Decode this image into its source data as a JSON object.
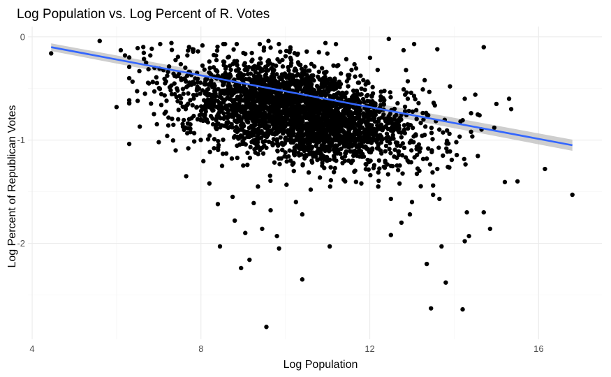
{
  "chart_data": {
    "type": "scatter",
    "title": "Log Population vs. Log Percent of R. Votes",
    "xlabel": "Log Population",
    "ylabel": "Log Percent of Republican Votes",
    "xlim": [
      3.9,
      17.5
    ],
    "ylim": [
      -2.93,
      0.1
    ],
    "xticks": [
      4,
      8,
      12,
      16
    ],
    "xtick_labels": [
      "4",
      "8",
      "12",
      "16"
    ],
    "yticks": [
      0,
      -1,
      -2
    ],
    "ytick_labels": [
      "0",
      "-1",
      "-2"
    ],
    "grid": true,
    "legend": "none",
    "point_color": "#000000",
    "trend": {
      "type": "linear regression with confidence band",
      "color": "#3366ff",
      "band_color": "#bdbdbd",
      "x": [
        4.45,
        16.8
      ],
      "y": [
        -0.1,
        -1.05
      ]
    },
    "series": [
      {
        "points": [
          [
            4.45,
            -0.16
          ],
          [
            5.6,
            -0.04
          ],
          [
            6.0,
            -0.68
          ],
          [
            6.1,
            -0.13
          ],
          [
            6.3,
            -0.2
          ],
          [
            6.5,
            -0.62
          ],
          [
            6.5,
            -0.11
          ],
          [
            6.55,
            -0.87
          ],
          [
            6.8,
            -0.18
          ],
          [
            7.0,
            -1.02
          ],
          [
            7.2,
            -0.96
          ],
          [
            7.4,
            -1.1
          ],
          [
            7.65,
            -1.35
          ],
          [
            7.7,
            -1.08
          ],
          [
            7.8,
            -0.12
          ],
          [
            8.0,
            -0.8
          ],
          [
            8.2,
            -1.42
          ],
          [
            8.35,
            -0.88
          ],
          [
            8.4,
            -1.62
          ],
          [
            8.45,
            -2.03
          ],
          [
            8.5,
            -1.25
          ],
          [
            8.6,
            -1.13
          ],
          [
            8.75,
            -1.55
          ],
          [
            8.8,
            -1.78
          ],
          [
            8.95,
            -2.24
          ],
          [
            9.05,
            -1.9
          ],
          [
            9.1,
            -1.24
          ],
          [
            9.15,
            -2.16
          ],
          [
            9.25,
            -1.61
          ],
          [
            9.35,
            -1.45
          ],
          [
            9.45,
            -1.86
          ],
          [
            9.55,
            -2.81
          ],
          [
            9.65,
            -1.68
          ],
          [
            9.7,
            -1.05
          ],
          [
            9.8,
            -1.93
          ],
          [
            9.85,
            -2.05
          ],
          [
            10.0,
            -1.12
          ],
          [
            10.2,
            -1.3
          ],
          [
            10.25,
            -1.6
          ],
          [
            10.4,
            -1.72
          ],
          [
            10.4,
            -2.35
          ],
          [
            10.6,
            -1.48
          ],
          [
            11.05,
            -2.03
          ],
          [
            11.15,
            -1.31
          ],
          [
            11.5,
            -1.2
          ],
          [
            11.8,
            -1.42
          ],
          [
            12.2,
            -1.45
          ],
          [
            12.5,
            -1.92
          ],
          [
            12.5,
            -1.57
          ],
          [
            12.75,
            -1.8
          ],
          [
            12.95,
            -1.72
          ],
          [
            13.0,
            -1.6
          ],
          [
            13.2,
            -1.08
          ],
          [
            13.3,
            -0.95
          ],
          [
            13.35,
            -1.18
          ],
          [
            13.35,
            -2.2
          ],
          [
            13.45,
            -2.63
          ],
          [
            13.5,
            -1.53
          ],
          [
            13.5,
            -1.44
          ],
          [
            13.6,
            -1.28
          ],
          [
            13.65,
            -1.57
          ],
          [
            13.7,
            -2.03
          ],
          [
            13.8,
            -2.38
          ],
          [
            13.85,
            -1.26
          ],
          [
            13.9,
            -1.11
          ],
          [
            14.05,
            -1.02
          ],
          [
            14.2,
            -2.64
          ],
          [
            14.25,
            -1.98
          ],
          [
            14.3,
            -1.7
          ],
          [
            14.35,
            -1.93
          ],
          [
            14.4,
            -0.92
          ],
          [
            14.5,
            -0.56
          ],
          [
            14.7,
            -1.7
          ],
          [
            14.85,
            -1.86
          ],
          [
            14.95,
            -0.88
          ],
          [
            15.0,
            -0.65
          ],
          [
            15.3,
            -0.6
          ],
          [
            15.35,
            -0.7
          ],
          [
            15.5,
            -1.4
          ],
          [
            16.15,
            -1.28
          ],
          [
            16.8,
            -1.53
          ],
          [
            13.05,
            -0.07
          ],
          [
            12.45,
            -0.02
          ],
          [
            10.95,
            -0.06
          ],
          [
            9.6,
            -0.04
          ],
          [
            7.3,
            -0.06
          ],
          [
            12.8,
            -0.13
          ],
          [
            13.6,
            -0.12
          ],
          [
            14.4,
            -0.74
          ],
          [
            14.6,
            -0.76
          ],
          [
            14.15,
            -0.82
          ],
          [
            14.7,
            -0.1
          ],
          [
            13.9,
            -0.48
          ],
          [
            14.25,
            -0.6
          ],
          [
            12.9,
            -0.6
          ],
          [
            13.3,
            -0.42
          ],
          [
            7.6,
            -0.9
          ],
          [
            8.1,
            -0.55
          ],
          [
            6.9,
            -0.3
          ],
          [
            7.15,
            -0.45
          ],
          [
            6.2,
            -0.18
          ],
          [
            6.7,
            -0.25
          ]
        ],
        "cloud": {
          "count": 3000,
          "x_mean": 10.3,
          "x_sd": 1.35,
          "intercept": 0.067,
          "slope": -0.0775,
          "resid_sd": 0.22
        }
      }
    ]
  }
}
